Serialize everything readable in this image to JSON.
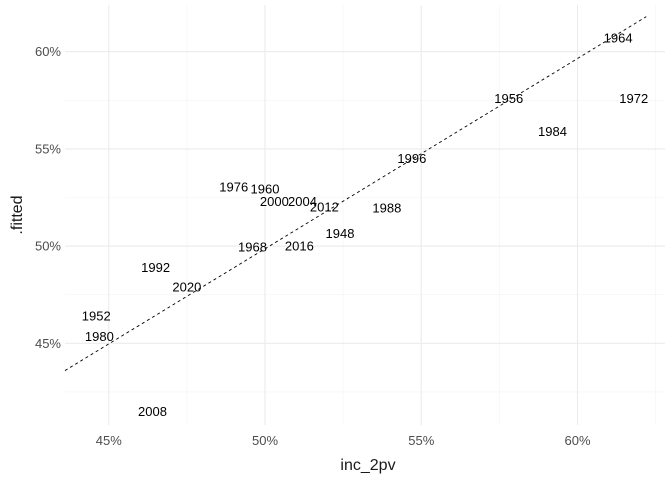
{
  "chart_data": {
    "type": "scatter",
    "xlabel": "inc_2pv",
    "ylabel": ".fitted",
    "xlim": [
      43.6,
      62.8
    ],
    "ylim": [
      40.8,
      62.4
    ],
    "x_ticks": [
      45,
      50,
      55,
      60
    ],
    "x_tick_labels": [
      "45%",
      "50%",
      "55%",
      "60%"
    ],
    "x_minor_ticks": [
      47.5,
      52.5,
      57.5,
      62.5
    ],
    "y_ticks": [
      45,
      50,
      55,
      60
    ],
    "y_tick_labels": [
      "45%",
      "50%",
      "55%",
      "60%"
    ],
    "y_minor_ticks": [
      42.5,
      47.5,
      52.5,
      57.5
    ],
    "grid": true,
    "points": [
      {
        "label": "1948",
        "x": 52.4,
        "y": 50.65
      },
      {
        "label": "1952",
        "x": 44.6,
        "y": 46.4
      },
      {
        "label": "1956",
        "x": 57.8,
        "y": 57.6
      },
      {
        "label": "1960",
        "x": 50.0,
        "y": 52.95
      },
      {
        "label": "1964",
        "x": 61.3,
        "y": 60.7
      },
      {
        "label": "1968",
        "x": 49.6,
        "y": 49.95
      },
      {
        "label": "1972",
        "x": 61.8,
        "y": 57.6
      },
      {
        "label": "1976",
        "x": 49.0,
        "y": 53.05
      },
      {
        "label": "1980",
        "x": 44.7,
        "y": 45.35
      },
      {
        "label": "1984",
        "x": 59.2,
        "y": 55.9
      },
      {
        "label": "1988",
        "x": 53.9,
        "y": 51.95
      },
      {
        "label": "1992",
        "x": 46.5,
        "y": 48.9
      },
      {
        "label": "1996",
        "x": 54.7,
        "y": 54.5
      },
      {
        "label": "2000",
        "x": 50.3,
        "y": 52.3
      },
      {
        "label": "2004",
        "x": 51.2,
        "y": 52.3
      },
      {
        "label": "2008",
        "x": 46.4,
        "y": 41.5
      },
      {
        "label": "2012",
        "x": 51.9,
        "y": 52.0
      },
      {
        "label": "2016",
        "x": 51.1,
        "y": 50.0
      },
      {
        "label": "2020",
        "x": 47.5,
        "y": 47.9
      }
    ],
    "fit_line": {
      "x": [
        43.6,
        62.2
      ],
      "y": [
        43.6,
        61.8
      ],
      "style": "dashed"
    }
  }
}
